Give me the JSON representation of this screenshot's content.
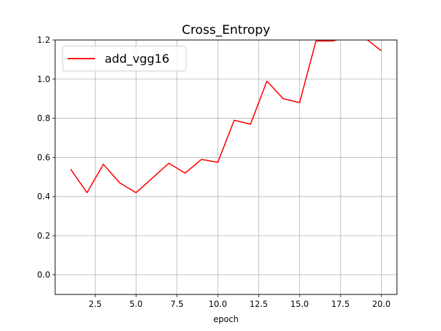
{
  "chart_data": {
    "type": "line",
    "title": "Cross_Entropy",
    "xlabel": "epoch",
    "ylabel": "",
    "xlim": [
      0.05,
      20.95
    ],
    "ylim": [
      -0.1,
      1.2
    ],
    "xticks": [
      2.5,
      5.0,
      7.5,
      10.0,
      12.5,
      15.0,
      17.5,
      20.0
    ],
    "xtick_labels": [
      "2.5",
      "5.0",
      "7.5",
      "10.0",
      "12.5",
      "15.0",
      "17.5",
      "20.0"
    ],
    "yticks": [
      0.0,
      0.2,
      0.4,
      0.6,
      0.8,
      1.0,
      1.2
    ],
    "ytick_labels": [
      "0.0",
      "0.2",
      "0.4",
      "0.6",
      "0.8",
      "1.0",
      "1.2"
    ],
    "grid": true,
    "legend_position": "top-left",
    "series": [
      {
        "name": "add_vgg16",
        "color": "#ff0000",
        "x": [
          1,
          2,
          3,
          4,
          5,
          6,
          7,
          8,
          9,
          10,
          11,
          12,
          13,
          14,
          15,
          16,
          17,
          18,
          19,
          20
        ],
        "y": [
          0.54,
          0.42,
          0.565,
          0.47,
          0.42,
          0.495,
          0.57,
          0.52,
          0.59,
          0.575,
          0.79,
          0.77,
          0.99,
          0.9,
          0.88,
          1.195,
          1.195,
          1.215,
          1.21,
          1.145
        ]
      }
    ]
  }
}
